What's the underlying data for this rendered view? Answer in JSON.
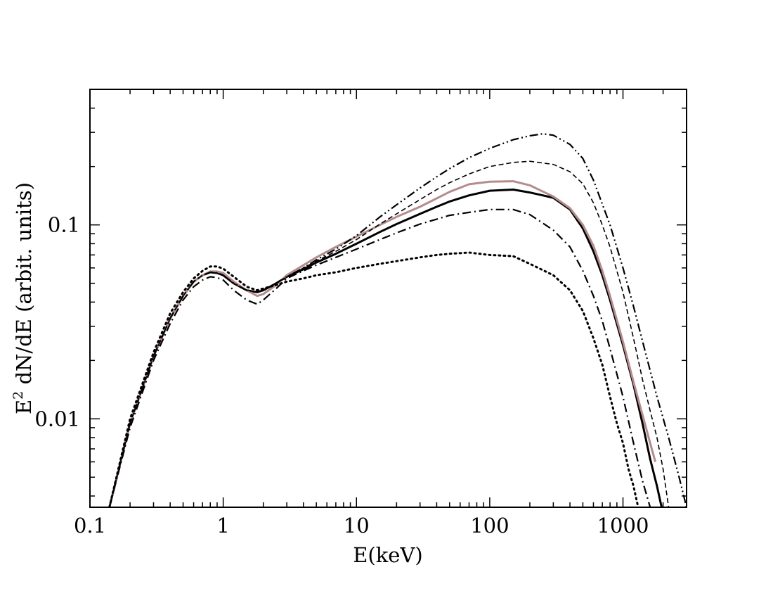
{
  "chart_data": {
    "type": "line",
    "title": "",
    "xlabel": "E(keV)",
    "ylabel": {
      "base": "E",
      "superscript": "2",
      "rest": " dN/dE  (arbit. units)"
    },
    "xscale": "log",
    "yscale": "log",
    "xlim": [
      0.1,
      3000
    ],
    "ylim": [
      0.0035,
      0.5
    ],
    "x_ticks": [
      0.1,
      1,
      10,
      100,
      1000
    ],
    "x_tick_labels": [
      "0.1",
      "1",
      "10",
      "100",
      "1000"
    ],
    "y_ticks": [
      0.01,
      0.1
    ],
    "y_tick_labels": [
      "0.01",
      "0.1"
    ],
    "grid": false,
    "legend": "none",
    "series": [
      {
        "name": "solid",
        "style": "solid",
        "color": "#000000",
        "x": [
          0.14,
          0.2,
          0.3,
          0.4,
          0.5,
          0.6,
          0.7,
          0.8,
          0.9,
          1.0,
          1.2,
          1.5,
          1.8,
          2.0,
          2.5,
          3,
          4,
          5,
          7,
          10,
          15,
          20,
          30,
          40,
          50,
          70,
          100,
          150,
          200,
          300,
          400,
          500,
          600,
          700,
          800,
          1000,
          1200,
          1400,
          1600,
          1800,
          1950
        ],
        "y": [
          0.0035,
          0.0095,
          0.021,
          0.033,
          0.043,
          0.051,
          0.055,
          0.057,
          0.0565,
          0.055,
          0.05,
          0.046,
          0.045,
          0.046,
          0.05,
          0.054,
          0.059,
          0.064,
          0.071,
          0.08,
          0.092,
          0.101,
          0.114,
          0.124,
          0.132,
          0.142,
          0.15,
          0.152,
          0.147,
          0.138,
          0.12,
          0.096,
          0.073,
          0.055,
          0.041,
          0.024,
          0.015,
          0.0095,
          0.0062,
          0.0045,
          0.0035
        ]
      },
      {
        "name": "grey",
        "style": "solid",
        "color": "#b48c8c",
        "x": [
          0.14,
          0.2,
          0.3,
          0.4,
          0.5,
          0.6,
          0.7,
          0.8,
          0.9,
          1.0,
          1.2,
          1.5,
          1.8,
          2.0,
          2.5,
          3,
          4,
          5,
          7,
          10,
          15,
          20,
          30,
          40,
          50,
          70,
          100,
          150,
          200,
          300,
          400,
          500,
          600,
          700,
          800,
          1000,
          1200,
          1400,
          1600,
          1750
        ],
        "y": [
          0.0035,
          0.0095,
          0.021,
          0.033,
          0.043,
          0.051,
          0.055,
          0.0575,
          0.0575,
          0.0565,
          0.051,
          0.046,
          0.043,
          0.044,
          0.049,
          0.055,
          0.062,
          0.068,
          0.077,
          0.087,
          0.1,
          0.11,
          0.124,
          0.137,
          0.148,
          0.162,
          0.167,
          0.168,
          0.16,
          0.14,
          0.122,
          0.1,
          0.078,
          0.058,
          0.043,
          0.025,
          0.0155,
          0.0105,
          0.0075,
          0.006
        ]
      },
      {
        "name": "dash-dot",
        "style": "dash-dot",
        "color": "#000000",
        "x": [
          0.14,
          0.2,
          0.3,
          0.4,
          0.5,
          0.6,
          0.7,
          0.8,
          0.9,
          1.0,
          1.2,
          1.5,
          1.8,
          2.0,
          2.5,
          3,
          4,
          5,
          7,
          10,
          15,
          20,
          30,
          40,
          50,
          70,
          100,
          150,
          200,
          300,
          400,
          500,
          600,
          700,
          800,
          1000,
          1200,
          1400,
          1600
        ],
        "y": [
          0.0035,
          0.009,
          0.02,
          0.031,
          0.041,
          0.048,
          0.052,
          0.054,
          0.0535,
          0.052,
          0.046,
          0.041,
          0.039,
          0.041,
          0.047,
          0.053,
          0.058,
          0.062,
          0.068,
          0.075,
          0.084,
          0.091,
          0.101,
          0.107,
          0.112,
          0.116,
          0.12,
          0.12,
          0.113,
          0.094,
          0.077,
          0.058,
          0.043,
          0.032,
          0.023,
          0.013,
          0.0075,
          0.0048,
          0.0035
        ]
      },
      {
        "name": "dotted",
        "style": "dotted",
        "color": "#000000",
        "x": [
          0.14,
          0.2,
          0.3,
          0.4,
          0.5,
          0.6,
          0.7,
          0.8,
          0.9,
          1.0,
          1.2,
          1.5,
          1.8,
          2.0,
          2.5,
          3,
          4,
          5,
          7,
          10,
          15,
          20,
          30,
          40,
          50,
          70,
          100,
          150,
          200,
          300,
          400,
          500,
          600,
          700,
          800,
          900,
          1000,
          1100,
          1200,
          1300
        ],
        "y": [
          0.0035,
          0.01,
          0.022,
          0.035,
          0.045,
          0.053,
          0.058,
          0.061,
          0.061,
          0.0595,
          0.054,
          0.048,
          0.046,
          0.047,
          0.049,
          0.051,
          0.053,
          0.055,
          0.057,
          0.06,
          0.063,
          0.065,
          0.068,
          0.07,
          0.071,
          0.072,
          0.07,
          0.069,
          0.063,
          0.055,
          0.046,
          0.036,
          0.026,
          0.019,
          0.013,
          0.0095,
          0.0075,
          0.0055,
          0.0045,
          0.0035
        ]
      },
      {
        "name": "dashed",
        "style": "dashed",
        "color": "#000000",
        "x": [
          0.14,
          0.2,
          0.3,
          0.4,
          0.5,
          0.6,
          0.7,
          0.8,
          0.9,
          1.0,
          1.2,
          1.5,
          1.8,
          2.0,
          2.5,
          3,
          4,
          5,
          7,
          10,
          15,
          20,
          30,
          40,
          50,
          70,
          100,
          150,
          200,
          300,
          400,
          500,
          600,
          700,
          800,
          1000,
          1200,
          1400,
          1600,
          1800,
          2000,
          2200
        ],
        "y": [
          0.0035,
          0.0095,
          0.021,
          0.033,
          0.043,
          0.051,
          0.055,
          0.057,
          0.0565,
          0.055,
          0.05,
          0.046,
          0.045,
          0.046,
          0.05,
          0.054,
          0.06,
          0.065,
          0.073,
          0.084,
          0.101,
          0.114,
          0.135,
          0.152,
          0.165,
          0.183,
          0.2,
          0.21,
          0.213,
          0.205,
          0.188,
          0.163,
          0.13,
          0.1,
          0.077,
          0.045,
          0.026,
          0.016,
          0.011,
          0.008,
          0.0055,
          0.0035
        ]
      },
      {
        "name": "dash-dot-dot",
        "style": "dash-dot-dot",
        "color": "#000000",
        "x": [
          0.14,
          0.2,
          0.3,
          0.4,
          0.5,
          0.6,
          0.7,
          0.8,
          0.9,
          1.0,
          1.2,
          1.5,
          1.8,
          2.0,
          2.5,
          3,
          4,
          5,
          7,
          10,
          15,
          20,
          30,
          40,
          50,
          70,
          100,
          150,
          200,
          250,
          300,
          400,
          500,
          600,
          800,
          1000,
          1200,
          1500,
          1800,
          2200,
          2600,
          3000
        ],
        "y": [
          0.0035,
          0.0095,
          0.021,
          0.033,
          0.043,
          0.051,
          0.055,
          0.057,
          0.0565,
          0.055,
          0.05,
          0.046,
          0.045,
          0.046,
          0.05,
          0.054,
          0.06,
          0.066,
          0.075,
          0.088,
          0.11,
          0.127,
          0.155,
          0.177,
          0.195,
          0.222,
          0.248,
          0.275,
          0.288,
          0.295,
          0.29,
          0.26,
          0.22,
          0.17,
          0.1,
          0.06,
          0.038,
          0.021,
          0.013,
          0.008,
          0.0052,
          0.0035
        ]
      }
    ]
  }
}
